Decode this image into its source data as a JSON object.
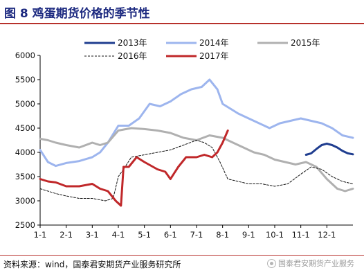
{
  "header": {
    "title": "图 8 鸡蛋期货价格的季节性"
  },
  "footer": {
    "source": "资料来源：wind，国泰君安期货产业服务研究所",
    "watermark": "国泰君安期货产业服务"
  },
  "chart_data": {
    "type": "line",
    "title": "图 8 鸡蛋期货价格的季节性",
    "xlabel": "",
    "ylabel": "",
    "x_unit": "month-of-year",
    "xlim": [
      1,
      13
    ],
    "ylim": [
      2500,
      6000
    ],
    "y_ticks": [
      2500,
      3000,
      3500,
      4000,
      4500,
      5000,
      5500,
      6000
    ],
    "x_ticks": [
      {
        "x": 1,
        "label": "1-1"
      },
      {
        "x": 2,
        "label": "2-1"
      },
      {
        "x": 3,
        "label": "3-1"
      },
      {
        "x": 4,
        "label": "4-1"
      },
      {
        "x": 5,
        "label": "5-1"
      },
      {
        "x": 6,
        "label": "6-1"
      },
      {
        "x": 7,
        "label": "7-1"
      },
      {
        "x": 8,
        "label": "8-1"
      },
      {
        "x": 9,
        "label": "9-1"
      },
      {
        "x": 10,
        "label": "10-1"
      },
      {
        "x": 11,
        "label": "11-1"
      },
      {
        "x": 12,
        "label": "12-1"
      }
    ],
    "grid": false,
    "legend_position": "top",
    "series": [
      {
        "name": "2013年",
        "color": "#1f3d8f",
        "dash": "solid",
        "weight": "bold",
        "x": [
          11.2,
          11.4,
          11.6,
          11.8,
          12.0,
          12.2,
          12.4,
          12.6,
          12.8,
          13.0
        ],
        "y": [
          3950,
          3980,
          4070,
          4150,
          4180,
          4150,
          4100,
          4030,
          3980,
          3960
        ]
      },
      {
        "name": "2014年",
        "color": "#9db5ee",
        "dash": "solid",
        "weight": "bold",
        "x": [
          1.0,
          1.3,
          1.6,
          2.0,
          2.5,
          3.0,
          3.3,
          3.6,
          4.0,
          4.4,
          4.8,
          5.2,
          5.6,
          6.0,
          6.4,
          6.8,
          7.2,
          7.5,
          7.8,
          8.0,
          8.3,
          8.6,
          9.0,
          9.4,
          9.8,
          10.2,
          10.6,
          11.0,
          11.4,
          11.8,
          12.2,
          12.6,
          13.0
        ],
        "y": [
          4050,
          3800,
          3720,
          3780,
          3820,
          3900,
          4000,
          4200,
          4550,
          4550,
          4700,
          5000,
          4950,
          5050,
          5200,
          5300,
          5350,
          5500,
          5300,
          5000,
          4900,
          4800,
          4700,
          4600,
          4500,
          4600,
          4650,
          4700,
          4650,
          4600,
          4500,
          4350,
          4300
        ]
      },
      {
        "name": "2015年",
        "color": "#b0b0b0",
        "dash": "solid",
        "weight": "bold",
        "x": [
          1.0,
          1.3,
          1.6,
          2.0,
          2.5,
          3.0,
          3.3,
          3.6,
          4.0,
          4.5,
          5.0,
          5.5,
          6.0,
          6.5,
          7.0,
          7.5,
          8.0,
          8.4,
          8.8,
          9.2,
          9.6,
          10.0,
          10.4,
          10.8,
          11.2,
          11.6,
          12.0,
          12.4,
          12.7,
          13.0
        ],
        "y": [
          4280,
          4250,
          4200,
          4150,
          4100,
          4200,
          4150,
          4200,
          4450,
          4500,
          4480,
          4450,
          4400,
          4300,
          4250,
          4350,
          4300,
          4200,
          4100,
          4000,
          3950,
          3850,
          3800,
          3750,
          3800,
          3700,
          3450,
          3250,
          3200,
          3250
        ]
      },
      {
        "name": "2016年",
        "color": "#111111",
        "dash": "dashed",
        "weight": "thin",
        "x": [
          1.0,
          1.3,
          1.6,
          2.0,
          2.5,
          3.0,
          3.5,
          3.8,
          4.0,
          4.2,
          4.5,
          5.0,
          5.5,
          6.0,
          6.5,
          7.0,
          7.3,
          7.6,
          7.9,
          8.2,
          8.6,
          9.0,
          9.5,
          10.0,
          10.5,
          11.0,
          11.4,
          11.8,
          12.2,
          12.6,
          13.0
        ],
        "y": [
          3250,
          3200,
          3150,
          3100,
          3050,
          3050,
          3000,
          3050,
          3500,
          3650,
          3900,
          3950,
          4000,
          4050,
          4150,
          4250,
          4200,
          4100,
          3800,
          3450,
          3400,
          3350,
          3350,
          3300,
          3350,
          3550,
          3700,
          3650,
          3500,
          3400,
          3350
        ]
      },
      {
        "name": "2017年",
        "color": "#c0282a",
        "dash": "solid",
        "weight": "bold",
        "x": [
          1.0,
          1.3,
          1.6,
          2.0,
          2.5,
          3.0,
          3.3,
          3.6,
          3.9,
          4.1,
          4.2,
          4.4,
          4.7,
          5.0,
          5.5,
          5.8,
          6.0,
          6.3,
          6.6,
          7.0,
          7.3,
          7.6,
          7.8,
          8.0,
          8.2
        ],
        "y": [
          3450,
          3400,
          3380,
          3300,
          3300,
          3350,
          3250,
          3200,
          3000,
          2900,
          3700,
          3700,
          3900,
          3800,
          3650,
          3600,
          3450,
          3700,
          3900,
          3900,
          3950,
          3900,
          4000,
          4200,
          4450
        ]
      }
    ]
  }
}
